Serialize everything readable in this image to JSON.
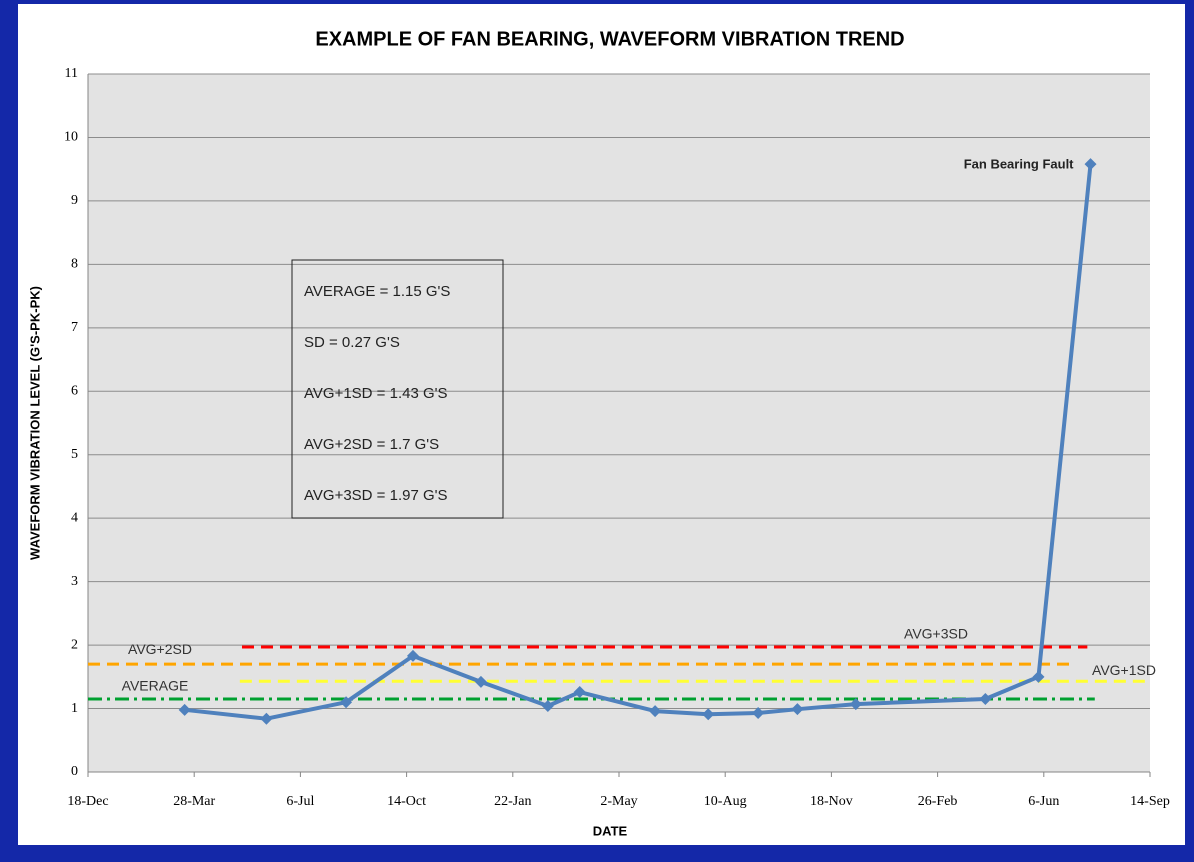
{
  "chart_data": {
    "type": "line",
    "title": "EXAMPLE OF FAN BEARING, WAVEFORM VIBRATION TREND",
    "x_label": "DATE",
    "y_label": "WAVEFORM VIBRATION LEVEL (G'S-PK-PK)",
    "xlim": [
      0,
      1000
    ],
    "xticks": [
      {
        "value": 0,
        "label": "18-Dec"
      },
      {
        "value": 100,
        "label": "28-Mar"
      },
      {
        "value": 200,
        "label": "6-Jul"
      },
      {
        "value": 300,
        "label": "14-Oct"
      },
      {
        "value": 400,
        "label": "22-Jan"
      },
      {
        "value": 500,
        "label": "2-May"
      },
      {
        "value": 600,
        "label": "10-Aug"
      },
      {
        "value": 700,
        "label": "18-Nov"
      },
      {
        "value": 800,
        "label": "26-Feb"
      },
      {
        "value": 900,
        "label": "6-Jun"
      },
      {
        "value": 1000,
        "label": "14-Sep"
      }
    ],
    "ylim": [
      0,
      11
    ],
    "yticks": [
      0,
      1,
      2,
      3,
      4,
      5,
      6,
      7,
      8,
      9,
      10,
      11
    ],
    "grid": true,
    "series": [
      {
        "color": "#4f81bd",
        "x": [
          91,
          168,
          243,
          306,
          370,
          433,
          463,
          534,
          584,
          631,
          668,
          723,
          845,
          895,
          944
        ],
        "values": [
          0.98,
          0.84,
          1.1,
          1.83,
          1.42,
          1.04,
          1.26,
          0.96,
          0.91,
          0.93,
          0.99,
          1.07,
          1.15,
          1.5,
          9.58
        ]
      }
    ],
    "reference_lines": [
      {
        "label": "AVG+3SD",
        "value": 1.97,
        "color": "#ff0000",
        "dash": "dashed",
        "xrange": [
          145,
          941
        ]
      },
      {
        "label": "AVG+2SD",
        "value": 1.7,
        "color": "#ffa500",
        "dash": "dashed",
        "xrange": [
          0,
          929
        ]
      },
      {
        "label": "AVG+1SD",
        "value": 1.43,
        "color": "#ffff33",
        "dash": "dashed",
        "xrange": [
          143,
          1000
        ]
      },
      {
        "label": "AVERAGE",
        "value": 1.15,
        "color": "#00a030",
        "dash": "dashdot",
        "xrange": [
          0,
          948
        ]
      }
    ],
    "annotations": [
      "Fan Bearing Fault"
    ],
    "stats_box": [
      "AVERAGE = 1.15 G'S",
      "SD = 0.27 G'S",
      "AVG+1SD = 1.43 G'S",
      "AVG+2SD = 1.7 G'S",
      "AVG+3SD = 1.97 G'S"
    ]
  }
}
